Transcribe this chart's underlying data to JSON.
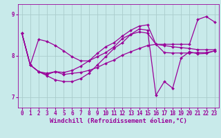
{
  "background_color": "#c8eaea",
  "grid_color": "#b0d8d8",
  "line_color": "#990099",
  "xlabel": "Windchill (Refroidissement éolien,°C)",
  "xlim": [
    -0.5,
    23.5
  ],
  "ylim": [
    6.75,
    9.25
  ],
  "yticks": [
    7,
    8,
    9
  ],
  "xticks": [
    0,
    1,
    2,
    3,
    4,
    5,
    6,
    7,
    8,
    9,
    10,
    11,
    12,
    13,
    14,
    15,
    16,
    17,
    18,
    19,
    20,
    21,
    22,
    23
  ],
  "series": [
    [
      8.55,
      7.78,
      7.62,
      7.55,
      7.62,
      7.55,
      7.58,
      7.6,
      7.65,
      7.72,
      7.82,
      7.9,
      8.02,
      8.1,
      8.18,
      8.25,
      8.28,
      8.25,
      8.22,
      8.2,
      8.18,
      8.15,
      8.15,
      8.15
    ],
    [
      8.55,
      7.78,
      7.62,
      7.58,
      7.62,
      7.6,
      7.65,
      7.75,
      7.88,
      8.06,
      8.22,
      8.32,
      8.48,
      8.62,
      8.72,
      8.75,
      8.28,
      8.08,
      8.07,
      8.07,
      8.07,
      8.08,
      8.08,
      8.12
    ],
    [
      8.55,
      7.78,
      7.62,
      7.52,
      7.42,
      7.38,
      7.38,
      7.45,
      7.58,
      7.78,
      7.98,
      8.18,
      8.32,
      8.52,
      8.65,
      8.62,
      7.05,
      7.38,
      7.22,
      7.95,
      8.1,
      8.05,
      8.06,
      8.12
    ],
    [
      8.55,
      7.78,
      8.4,
      8.35,
      8.25,
      8.12,
      7.98,
      7.88,
      7.88,
      7.98,
      8.08,
      8.22,
      8.42,
      8.52,
      8.58,
      8.55,
      8.28,
      8.28,
      8.28,
      8.28,
      8.28,
      8.88,
      8.95,
      8.82
    ]
  ],
  "markersize": 2.0,
  "linewidth": 0.9,
  "tick_fontsize": 5.5,
  "xlabel_fontsize": 6.5
}
